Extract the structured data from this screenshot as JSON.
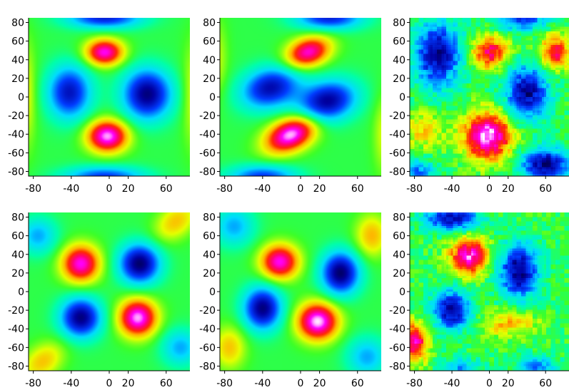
{
  "chart_data": [
    {
      "type": "heatmap",
      "panel": "row1-col1",
      "xlim": [
        -85,
        85
      ],
      "ylim": [
        -85,
        85
      ],
      "x_ticks": [
        -80,
        -40,
        0,
        20,
        60
      ],
      "x_tick_labels": [
        "-80",
        "-40",
        "0",
        "20",
        "60"
      ],
      "y_ticks": [
        80,
        60,
        40,
        20,
        0,
        -20,
        -40,
        -60,
        -80
      ],
      "y_tick_labels": [
        "80",
        "60",
        "40",
        "20",
        "0",
        "-20",
        "-40",
        "-60",
        "-80"
      ],
      "colormap": "rainbow",
      "smooth": true,
      "noise": 0,
      "features": [
        {
          "kind": "high",
          "x": -5,
          "y": 48,
          "sx": 14,
          "sy": 10,
          "amp": 1.3
        },
        {
          "kind": "high",
          "x": -2,
          "y": -42,
          "sx": 15,
          "sy": 12,
          "amp": 1.45
        },
        {
          "kind": "low",
          "x": -42,
          "y": 5,
          "sx": 16,
          "sy": 20,
          "amp": -1.1
        },
        {
          "kind": "low",
          "x": 40,
          "y": 3,
          "sx": 18,
          "sy": 19,
          "amp": -1.3
        },
        {
          "kind": "low",
          "x": -5,
          "y": 85,
          "sx": 28,
          "sy": 8,
          "amp": -1.0
        },
        {
          "kind": "low",
          "x": -5,
          "y": -86,
          "sx": 30,
          "sy": 8,
          "amp": -0.9
        },
        {
          "kind": "high",
          "x": -88,
          "y": 2,
          "sx": 8,
          "sy": 40,
          "amp": 0.4
        },
        {
          "kind": "high",
          "x": 88,
          "y": 2,
          "sx": 8,
          "sy": 40,
          "amp": 0.35
        }
      ]
    },
    {
      "type": "heatmap",
      "panel": "row1-col2",
      "xlim": [
        -85,
        85
      ],
      "ylim": [
        -85,
        85
      ],
      "x_ticks": [
        -80,
        -40,
        0,
        20,
        60
      ],
      "x_tick_labels": [
        "-80",
        "-40",
        "0",
        "20",
        "60"
      ],
      "y_ticks": [
        80,
        60,
        40,
        20,
        0,
        -20,
        -40,
        -60,
        -80
      ],
      "y_tick_labels": [
        "80",
        "60",
        "40",
        "20",
        "0",
        "-20",
        "-40",
        "-60",
        "-80"
      ],
      "colormap": "rainbow",
      "smooth": true,
      "noise": 0,
      "features": [
        {
          "kind": "high",
          "x": 8,
          "y": 48,
          "sx": 17,
          "sy": 11,
          "amp": 1.25,
          "rot": -0.35
        },
        {
          "kind": "high",
          "x": -10,
          "y": -40,
          "sx": 20,
          "sy": 12,
          "amp": 1.5,
          "rot": -0.45
        },
        {
          "kind": "low",
          "x": -32,
          "y": 10,
          "sx": 22,
          "sy": 15,
          "amp": -1.15,
          "rot": -0.3
        },
        {
          "kind": "low",
          "x": 28,
          "y": -5,
          "sx": 22,
          "sy": 15,
          "amp": -1.25,
          "rot": -0.3
        },
        {
          "kind": "low",
          "x": 30,
          "y": 85,
          "sx": 25,
          "sy": 9,
          "amp": -1.0
        },
        {
          "kind": "low",
          "x": -40,
          "y": -86,
          "sx": 25,
          "sy": 9,
          "amp": -0.9
        },
        {
          "kind": "high",
          "x": 88,
          "y": -40,
          "sx": 8,
          "sy": 30,
          "amp": 0.35
        },
        {
          "kind": "high",
          "x": -88,
          "y": 40,
          "sx": 8,
          "sy": 30,
          "amp": 0.3
        }
      ]
    },
    {
      "type": "heatmap",
      "panel": "row1-col3",
      "xlim": [
        -85,
        85
      ],
      "ylim": [
        -85,
        85
      ],
      "x_ticks": [
        -80,
        -40,
        0,
        20,
        60
      ],
      "x_tick_labels": [
        "-80",
        "-40",
        "0",
        "20",
        "60"
      ],
      "y_ticks": [
        80,
        60,
        40,
        20,
        0,
        -20,
        -40,
        -60,
        -80
      ],
      "y_tick_labels": [
        "80",
        "60",
        "40",
        "20",
        "0",
        "-20",
        "-40",
        "-60",
        "-80"
      ],
      "colormap": "rainbow",
      "smooth": false,
      "noise": 0.35,
      "features": [
        {
          "kind": "high",
          "x": -2,
          "y": -42,
          "sx": 18,
          "sy": 18,
          "amp": 1.5
        },
        {
          "kind": "high",
          "x": 0,
          "y": 48,
          "sx": 14,
          "sy": 13,
          "amp": 1.05
        },
        {
          "kind": "high",
          "x": 70,
          "y": 48,
          "sx": 12,
          "sy": 13,
          "amp": 1.0
        },
        {
          "kind": "high",
          "x": -70,
          "y": -35,
          "sx": 14,
          "sy": 14,
          "amp": 0.55
        },
        {
          "kind": "low",
          "x": -55,
          "y": 45,
          "sx": 18,
          "sy": 25,
          "amp": -1.2
        },
        {
          "kind": "low",
          "x": 40,
          "y": 5,
          "sx": 16,
          "sy": 20,
          "amp": -1.25
        },
        {
          "kind": "low",
          "x": 60,
          "y": -72,
          "sx": 18,
          "sy": 12,
          "amp": -1.3
        },
        {
          "kind": "low",
          "x": 35,
          "y": 85,
          "sx": 20,
          "sy": 10,
          "amp": -0.9
        },
        {
          "kind": "low",
          "x": -75,
          "y": -80,
          "sx": 12,
          "sy": 10,
          "amp": -0.7
        }
      ]
    },
    {
      "type": "heatmap",
      "panel": "row2-col1",
      "xlim": [
        -85,
        85
      ],
      "ylim": [
        -85,
        85
      ],
      "x_ticks": [
        -80,
        -40,
        0,
        20,
        60
      ],
      "x_tick_labels": [
        "-80",
        "-40",
        "0",
        "20",
        "60"
      ],
      "y_ticks": [
        80,
        60,
        40,
        20,
        0,
        -20,
        -40,
        -60,
        -80
      ],
      "y_tick_labels": [
        "80",
        "60",
        "40",
        "20",
        "0",
        "-20",
        "-40",
        "-60",
        "-80"
      ],
      "colormap": "rainbow",
      "smooth": true,
      "noise": 0,
      "features": [
        {
          "kind": "high",
          "x": -30,
          "y": 30,
          "sx": 14,
          "sy": 14,
          "amp": 1.3
        },
        {
          "kind": "high",
          "x": 30,
          "y": -28,
          "sx": 14,
          "sy": 14,
          "amp": 1.45
        },
        {
          "kind": "low",
          "x": 32,
          "y": 30,
          "sx": 15,
          "sy": 15,
          "amp": -1.35
        },
        {
          "kind": "low",
          "x": -30,
          "y": -28,
          "sx": 15,
          "sy": 15,
          "amp": -1.3
        },
        {
          "kind": "high",
          "x": 70,
          "y": 75,
          "sx": 18,
          "sy": 12,
          "amp": 0.55,
          "rot": -0.7
        },
        {
          "kind": "high",
          "x": -70,
          "y": -75,
          "sx": 18,
          "sy": 12,
          "amp": 0.55,
          "rot": -0.7
        },
        {
          "kind": "low",
          "x": -75,
          "y": 60,
          "sx": 14,
          "sy": 14,
          "amp": -0.6
        },
        {
          "kind": "low",
          "x": 75,
          "y": -60,
          "sx": 14,
          "sy": 14,
          "amp": -0.6
        }
      ]
    },
    {
      "type": "heatmap",
      "panel": "row2-col2",
      "xlim": [
        -85,
        85
      ],
      "ylim": [
        -85,
        85
      ],
      "x_ticks": [
        -80,
        -40,
        0,
        20,
        60
      ],
      "x_tick_labels": [
        "-80",
        "-40",
        "0",
        "20",
        "60"
      ],
      "y_ticks": [
        80,
        60,
        40,
        20,
        0,
        -20,
        -40,
        -60,
        -80
      ],
      "y_tick_labels": [
        "80",
        "60",
        "40",
        "20",
        "0",
        "-20",
        "-40",
        "-60",
        "-80"
      ],
      "colormap": "rainbow",
      "smooth": true,
      "noise": 0,
      "features": [
        {
          "kind": "high",
          "x": -22,
          "y": 32,
          "sx": 14,
          "sy": 13,
          "amp": 1.3
        },
        {
          "kind": "high",
          "x": 18,
          "y": -32,
          "sx": 15,
          "sy": 14,
          "amp": 1.5
        },
        {
          "kind": "low",
          "x": 42,
          "y": 20,
          "sx": 14,
          "sy": 16,
          "amp": -1.35
        },
        {
          "kind": "low",
          "x": -40,
          "y": -18,
          "sx": 14,
          "sy": 16,
          "amp": -1.3
        },
        {
          "kind": "high",
          "x": 75,
          "y": 60,
          "sx": 12,
          "sy": 16,
          "amp": 0.6
        },
        {
          "kind": "high",
          "x": -75,
          "y": -60,
          "sx": 12,
          "sy": 16,
          "amp": 0.55
        },
        {
          "kind": "low",
          "x": -70,
          "y": 70,
          "sx": 15,
          "sy": 15,
          "amp": -0.6
        },
        {
          "kind": "low",
          "x": 70,
          "y": -70,
          "sx": 15,
          "sy": 15,
          "amp": -0.6
        }
      ]
    },
    {
      "type": "heatmap",
      "panel": "row2-col3",
      "xlim": [
        -85,
        85
      ],
      "ylim": [
        -85,
        85
      ],
      "x_ticks": [
        -80,
        -40,
        0,
        20,
        60
      ],
      "x_tick_labels": [
        "-80",
        "-40",
        "0",
        "20",
        "60"
      ],
      "y_ticks": [
        80,
        60,
        40,
        20,
        0,
        -20,
        -40,
        -60,
        -80
      ],
      "y_tick_labels": [
        "80",
        "60",
        "40",
        "20",
        "0",
        "-20",
        "-40",
        "-60",
        "-80"
      ],
      "colormap": "rainbow",
      "smooth": false,
      "noise": 0.35,
      "features": [
        {
          "kind": "high",
          "x": -22,
          "y": 38,
          "sx": 14,
          "sy": 14,
          "amp": 1.35
        },
        {
          "kind": "high",
          "x": -80,
          "y": -55,
          "sx": 10,
          "sy": 15,
          "amp": 1.2
        },
        {
          "kind": "high",
          "x": 20,
          "y": -35,
          "sx": 22,
          "sy": 10,
          "amp": 0.55
        },
        {
          "kind": "low",
          "x": 32,
          "y": 22,
          "sx": 15,
          "sy": 20,
          "amp": -1.3
        },
        {
          "kind": "low",
          "x": -40,
          "y": -20,
          "sx": 14,
          "sy": 15,
          "amp": -1.25
        },
        {
          "kind": "low",
          "x": -40,
          "y": 78,
          "sx": 20,
          "sy": 9,
          "amp": -1.2
        },
        {
          "kind": "low",
          "x": 50,
          "y": -80,
          "sx": 15,
          "sy": 8,
          "amp": -0.7
        },
        {
          "kind": "low",
          "x": -30,
          "y": -82,
          "sx": 15,
          "sy": 8,
          "amp": -0.6
        }
      ]
    }
  ]
}
